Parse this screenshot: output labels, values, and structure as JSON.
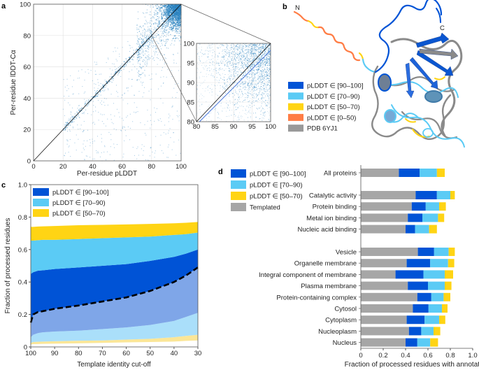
{
  "panel_labels": {
    "a": "a",
    "b": "b",
    "c": "c",
    "d": "d"
  },
  "colors": {
    "plddt_90_100": "#0053d6",
    "plddt_70_90": "#5bcbf5",
    "plddt_50_70": "#ffd414",
    "plddt_0_50": "#ff7d45",
    "pdb": "#999999",
    "templated": "#a6a6a6",
    "templated_90_100": "#7fa6e8",
    "templated_70_90": "#aadffa",
    "templated_50_70": "#fbe697",
    "scatter": "#2b83c0"
  },
  "structure": {
    "n_label": "N",
    "c_label": "C",
    "legend": [
      {
        "label": "pLDDT ∈ [90–100]",
        "color": "#0053d6"
      },
      {
        "label": "pLDDT ∈ [70–90)",
        "color": "#5bcbf5"
      },
      {
        "label": "pLDDT ∈ [50–70)",
        "color": "#ffd414"
      },
      {
        "label": "pLDDT ∈ [0–50)",
        "color": "#ff7d45"
      },
      {
        "label": "PDB 6YJ1",
        "color": "#999999"
      }
    ]
  },
  "chart_data": [
    {
      "panel": "a",
      "type": "scatter",
      "xlabel": "Per-residue pLDDT",
      "ylabel": "Per-residue lDDT-Cα",
      "xlim": [
        0,
        100
      ],
      "ylim": [
        0,
        100
      ],
      "xticks": [
        "0",
        "20",
        "40",
        "60",
        "80",
        "100"
      ],
      "yticks": [
        "0",
        "20",
        "40",
        "60",
        "80",
        "100"
      ],
      "grid": true,
      "reference_line": "y = x",
      "inset": {
        "xlim": [
          80,
          100
        ],
        "ylim": [
          80,
          100
        ],
        "xticks": [
          "80",
          "85",
          "90",
          "95",
          "100"
        ],
        "yticks": [
          "80",
          "85",
          "90",
          "95",
          "100"
        ]
      }
    },
    {
      "panel": "c",
      "type": "area",
      "xlabel": "Template identity cut-off",
      "ylabel": "Fraction of processed residues",
      "xlim": [
        100,
        30
      ],
      "ylim": [
        0,
        1.0
      ],
      "xticks": [
        "100",
        "90",
        "80",
        "70",
        "60",
        "50",
        "40",
        "30"
      ],
      "yticks": [
        "0",
        "0.2",
        "0.4",
        "0.6",
        "0.8",
        "1.0"
      ],
      "legend": [
        {
          "label": "pLDDT ∈ [90–100]",
          "color": "#0053d6"
        },
        {
          "label": "pLDDT ∈ [70–90)",
          "color": "#5bcbf5"
        },
        {
          "label": "pLDDT ∈ [50–70)",
          "color": "#ffd414"
        }
      ],
      "legend_position": "top-left",
      "x": [
        100,
        99,
        97,
        95,
        90,
        80,
        70,
        60,
        50,
        40,
        35,
        30
      ],
      "boundaries": {
        "templated_50_70_bottom": [
          0.015,
          0.017,
          0.018,
          0.019,
          0.02,
          0.022,
          0.025,
          0.028,
          0.03,
          0.033,
          0.037,
          0.04
        ],
        "templated_50_70_top": [
          0.025,
          0.03,
          0.032,
          0.033,
          0.035,
          0.038,
          0.04,
          0.045,
          0.05,
          0.06,
          0.068,
          0.075
        ],
        "templated_70_90_top": [
          0.06,
          0.075,
          0.085,
          0.09,
          0.095,
          0.1,
          0.11,
          0.12,
          0.135,
          0.16,
          0.185,
          0.21
        ],
        "templated_total_dashed": [
          0.15,
          0.2,
          0.215,
          0.22,
          0.235,
          0.255,
          0.28,
          0.305,
          0.345,
          0.4,
          0.44,
          0.49
        ],
        "plddt_90_100_top": [
          0.45,
          0.46,
          0.47,
          0.472,
          0.48,
          0.49,
          0.5,
          0.51,
          0.53,
          0.555,
          0.575,
          0.6
        ],
        "plddt_70_90_top": [
          0.655,
          0.655,
          0.658,
          0.66,
          0.66,
          0.665,
          0.67,
          0.675,
          0.68,
          0.69,
          0.695,
          0.705
        ],
        "plddt_50_70_top": [
          0.74,
          0.74,
          0.742,
          0.743,
          0.745,
          0.75,
          0.752,
          0.755,
          0.758,
          0.762,
          0.765,
          0.77
        ]
      }
    },
    {
      "panel": "d",
      "type": "bar",
      "orientation": "horizontal-stacked",
      "xlabel": "Fraction of processed residues with annotation",
      "xlim": [
        0,
        1.0
      ],
      "xticks": [
        "0",
        "0.2",
        "0.4",
        "0.6",
        "0.8",
        "1.0"
      ],
      "legend": [
        {
          "label": "pLDDT ∈ [90–100]",
          "color": "#0053d6"
        },
        {
          "label": "pLDDT ∈ [70–90)",
          "color": "#5bcbf5"
        },
        {
          "label": "pLDDT ∈ [50–70)",
          "color": "#ffd414"
        },
        {
          "label": "Templated",
          "color": "#a6a6a6"
        }
      ],
      "legend_position": "top-left",
      "series_order": [
        "Templated",
        "pLDDT ∈ [90–100]",
        "pLDDT ∈ [70–90)",
        "pLDDT ∈ [50–70)"
      ],
      "groups": [
        [
          {
            "category": "All proteins",
            "values": [
              0.34,
              0.185,
              0.155,
              0.07
            ]
          }
        ],
        [
          {
            "category": "Catalytic activity",
            "values": [
              0.49,
              0.19,
              0.12,
              0.04
            ]
          },
          {
            "category": "Protein binding",
            "values": [
              0.455,
              0.125,
              0.12,
              0.06
            ]
          },
          {
            "category": "Metal ion binding",
            "values": [
              0.42,
              0.13,
              0.14,
              0.055
            ]
          },
          {
            "category": "Nucleic acid binding",
            "values": [
              0.4,
              0.085,
              0.125,
              0.07
            ]
          }
        ],
        [
          {
            "category": "Vesicle",
            "values": [
              0.51,
              0.145,
              0.13,
              0.055
            ]
          },
          {
            "category": "Organelle membrane",
            "values": [
              0.41,
              0.21,
              0.16,
              0.055
            ]
          },
          {
            "category": "Integral component of membrane",
            "values": [
              0.31,
              0.25,
              0.19,
              0.075
            ]
          },
          {
            "category": "Plasma membrane",
            "values": [
              0.42,
              0.18,
              0.15,
              0.06
            ]
          },
          {
            "category": "Protein-containing complex",
            "values": [
              0.505,
              0.125,
              0.11,
              0.06
            ]
          },
          {
            "category": "Cytosol",
            "values": [
              0.465,
              0.14,
              0.12,
              0.05
            ]
          },
          {
            "category": "Cytoplasm",
            "values": [
              0.41,
              0.16,
              0.13,
              0.055
            ]
          },
          {
            "category": "Nucleoplasm",
            "values": [
              0.43,
              0.11,
              0.11,
              0.06
            ]
          },
          {
            "category": "Nucleus",
            "values": [
              0.4,
              0.105,
              0.115,
              0.07
            ]
          }
        ]
      ]
    }
  ]
}
